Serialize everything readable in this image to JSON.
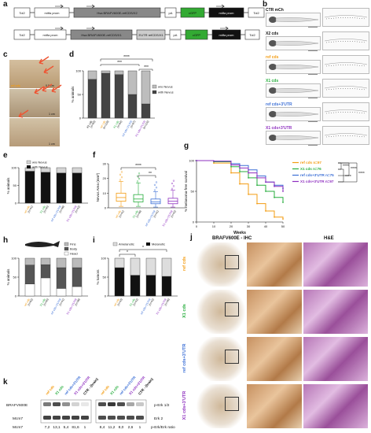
{
  "panels": {
    "a": {
      "label": "a",
      "construct1": [
        "Tol2",
        "mitfa prom",
        "Hsa BRAFV600E-refCDS/X2",
        "pA",
        "cGFP",
        "mitfa prom",
        "Tol2"
      ],
      "construct2": [
        "Tol2",
        "mitfa prom",
        "Hsa BRAFV600E-refCDS/X1",
        "3'UTR refCDS/X1",
        "pA",
        "cGFP",
        "mitfa prom",
        "Tol2"
      ]
    },
    "b": {
      "label": "b",
      "rows": [
        {
          "label": "CTR mCh",
          "color": "#111111"
        },
        {
          "label": "X2 cds",
          "color": "#111111"
        },
        {
          "label": "ref cds",
          "color": "#f39c12"
        },
        {
          "label": "X1 cds",
          "color": "#27ae3d"
        },
        {
          "label": "ref cds+3'UTR",
          "color": "#3b6fd6"
        },
        {
          "label": "X1 cds+3'UTR",
          "color": "#8e2fbf"
        }
      ]
    },
    "c": {
      "label": "c",
      "captions": [
        "ref cds",
        "0.5 cm",
        "1 cm",
        "1 cm"
      ]
    },
    "d": {
      "label": "d",
      "ylabel": "% animals",
      "legend": [
        "w/o Nevus",
        "with Nevus"
      ],
      "sig": [
        "****",
        "***",
        "***"
      ]
    },
    "e": {
      "label": "e",
      "ylabel": "% animals",
      "legend": [
        "w/o Nevus",
        "with Nevus"
      ]
    },
    "f": {
      "label": "f",
      "ylabel": "Nevus Area (mm²)",
      "sig": [
        "****",
        "**"
      ]
    },
    "g": {
      "label": "g",
      "ylabel": "% melanoma-free survival",
      "xlabel": "Weeks",
      "legend": [
        {
          "text": "ref cds n=97",
          "color": "#f39c12"
        },
        {
          "text": "X1 cds n=76",
          "color": "#27ae3d"
        },
        {
          "text": "ref cds+3'UTR n=75",
          "color": "#3b6fd6"
        },
        {
          "text": "X1 cds+3'UTR n=97",
          "color": "#8e2fbf"
        }
      ],
      "sig": [
        "****",
        "****",
        "****",
        "****"
      ]
    },
    "h": {
      "label": "h",
      "ylabel": "% animals",
      "legend": [
        "Fins",
        "Body",
        "Head"
      ]
    },
    "i": {
      "label": "i",
      "ylabel": "% tumors",
      "legend": [
        "Amelanotic",
        "Melanotic"
      ],
      "sig": [
        "*",
        "*"
      ]
    },
    "j": {
      "label": "j",
      "col1": "BRAFV600E - IHC",
      "col2": "H&E",
      "rows": [
        {
          "label": "ref cds",
          "color": "#f39c12"
        },
        {
          "label": "X1 cds",
          "color": "#27ae3d"
        },
        {
          "label": "ref cds+3'UTR",
          "color": "#3b6fd6"
        },
        {
          "label": "X1 cds+3'UTR",
          "color": "#8e2fbf"
        }
      ]
    },
    "k": {
      "label": "k",
      "lanes": [
        {
          "text": "ref cds",
          "color": "#f39c12"
        },
        {
          "text": "X1 cds",
          "color": "#27ae3d"
        },
        {
          "text": "ref cds+3'UTR",
          "color": "#3b6fd6"
        },
        {
          "text": "X1 cds+3'UTR",
          "color": "#8e2fbf"
        },
        {
          "text": "CTR - (brain)",
          "color": "#111111"
        }
      ],
      "left_labels": [
        "BRAFV600E",
        "Mcm7"
      ],
      "right_labels": [
        "p-Erk 1/2",
        "Erk 2"
      ],
      "mcm7_label": "Mcm7",
      "mcm7_values": [
        "7,2",
        "13,1",
        "5,4",
        "81,6",
        "1"
      ],
      "perk_values": [
        "8,4",
        "11,2",
        "8,0",
        "2,6",
        "1"
      ],
      "ratio_label": "p-Erk/Erk ratio"
    }
  },
  "chart_data": [
    {
      "panel": "d",
      "type": "bar",
      "categories": [
        "X2 cds",
        "ref cds",
        "X1 cds",
        "ref cds+3'UTR",
        "X1 cds+3'UTR"
      ],
      "category_counts": [
        "(n=80)",
        "(n=118)",
        "(n=84)",
        "(n=87)",
        "(n=116)"
      ],
      "series": [
        {
          "name": "with Nevus",
          "values": [
            82,
            95,
            92,
            50,
            30
          ],
          "color": "#444444"
        },
        {
          "name": "w/o Nevus",
          "values": [
            18,
            5,
            8,
            50,
            70
          ],
          "color": "#bdbdbd"
        }
      ],
      "ylim": [
        0,
        100
      ],
      "yticks": [
        "0",
        "50",
        "100"
      ]
    },
    {
      "panel": "e",
      "type": "bar",
      "categories": [
        "ref cds",
        "X1 cds",
        "ref cds+3'UTR",
        "X1 cds+3'UTR"
      ],
      "category_counts": [
        "(n=41)",
        "(n=45)",
        "(n=49)",
        "(n=42)"
      ],
      "series": [
        {
          "name": "with Nevus",
          "values": [
            90,
            87,
            85,
            85
          ],
          "color": "#111111"
        },
        {
          "name": "w/o Nevus",
          "values": [
            10,
            13,
            15,
            15
          ],
          "color": "#d5d5d5"
        }
      ],
      "ylim": [
        0,
        100
      ],
      "yticks": [
        "0",
        "50",
        "100"
      ]
    },
    {
      "panel": "f",
      "type": "box",
      "categories": [
        "ref cds",
        "X1 cds",
        "ref cds+3'UTR",
        "X1 cds+3'UTR"
      ],
      "category_counts": [
        "(n=41)",
        "(n=49)",
        "(n=41)",
        "(n=42)"
      ],
      "colors": [
        "#f39c12",
        "#27ae3d",
        "#3b6fd6",
        "#8e2fbf"
      ],
      "boxes": [
        {
          "min": 1,
          "q1": 4.5,
          "median": 7,
          "q3": 10,
          "max": 18
        },
        {
          "min": 1,
          "q1": 4,
          "median": 6,
          "q3": 9,
          "max": 17
        },
        {
          "min": 0.5,
          "q1": 2.8,
          "median": 4,
          "q3": 6,
          "max": 11
        },
        {
          "min": 0.5,
          "q1": 2.8,
          "median": 4.5,
          "q3": 6.5,
          "max": 12
        }
      ],
      "ylim": [
        0,
        30
      ],
      "yticks": [
        "0",
        "10",
        "20",
        "30"
      ]
    },
    {
      "panel": "g",
      "type": "line",
      "x": [
        0,
        10,
        20,
        25,
        30,
        35,
        40,
        45,
        50
      ],
      "series": [
        {
          "name": "ref cds n=97",
          "values": [
            100,
            96,
            80,
            62,
            45,
            30,
            18,
            8,
            5
          ],
          "color": "#f39c12"
        },
        {
          "name": "X1 cds n=76",
          "values": [
            100,
            98,
            90,
            82,
            72,
            60,
            50,
            40,
            32
          ],
          "color": "#27ae3d"
        },
        {
          "name": "ref cds+3'UTR n=75",
          "values": [
            100,
            99,
            95,
            92,
            85,
            75,
            65,
            60,
            55
          ],
          "color": "#3b6fd6"
        },
        {
          "name": "X1 cds+3'UTR n=97",
          "values": [
            100,
            99,
            93,
            88,
            80,
            72,
            65,
            58,
            50
          ],
          "color": "#8e2fbf"
        }
      ],
      "xlim": [
        0,
        50
      ],
      "ylim": [
        0,
        100
      ],
      "xticks": [
        "0",
        "10",
        "20",
        "30",
        "40",
        "50"
      ],
      "yticks": [
        "0",
        "50",
        "100"
      ]
    },
    {
      "panel": "h",
      "type": "bar",
      "categories": [
        "ref cds",
        "X1 cds",
        "ref cds+3'UTR",
        "X1 cds+3'UTR"
      ],
      "category_counts": [
        "(n=82)",
        "(n=55)",
        "(n=41)",
        "(n=39)"
      ],
      "series": [
        {
          "name": "Head",
          "values": [
            32,
            48,
            20,
            25
          ],
          "color": "#ffffff"
        },
        {
          "name": "Body",
          "values": [
            50,
            35,
            55,
            50
          ],
          "color": "#555555"
        },
        {
          "name": "Fins",
          "values": [
            18,
            17,
            25,
            25
          ],
          "color": "#bbbbbb"
        }
      ],
      "ylim": [
        0,
        100
      ],
      "yticks": [
        "0",
        "50",
        "100"
      ]
    },
    {
      "panel": "i",
      "type": "bar",
      "categories": [
        "ref cds",
        "X1 cds",
        "ref cds+3'UTR",
        "X1 cds+3'UTR"
      ],
      "category_counts": [
        "(n=43)",
        "(n=42)",
        "(n=42)",
        "(n=36)"
      ],
      "series": [
        {
          "name": "Melanotic",
          "values": [
            75,
            55,
            55,
            52
          ],
          "color": "#111111"
        },
        {
          "name": "Amelanotic",
          "values": [
            25,
            45,
            45,
            48
          ],
          "color": "#dddddd"
        }
      ],
      "ylim": [
        0,
        100
      ],
      "yticks": [
        "0",
        "50",
        "100"
      ]
    }
  ]
}
